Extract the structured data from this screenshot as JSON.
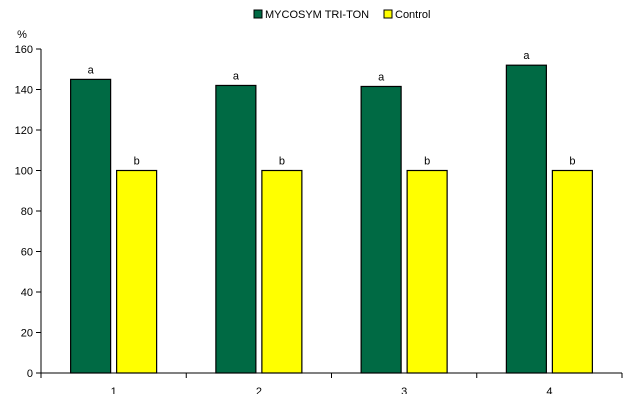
{
  "chart_data": {
    "type": "bar",
    "title": "",
    "ylabel": "%",
    "xlabel": "",
    "categories": [
      "1",
      "2",
      "3",
      "4"
    ],
    "ylim": [
      0,
      160
    ],
    "yticks": [
      0,
      20,
      40,
      60,
      80,
      100,
      120,
      140,
      160
    ],
    "grid": false,
    "legend_position": "top",
    "series": [
      {
        "name": "MYCOSYM TRI-TON",
        "values": [
          145,
          142,
          141.5,
          152
        ],
        "labels": [
          "a",
          "a",
          "a",
          "a"
        ],
        "color": "#006a44"
      },
      {
        "name": "Control",
        "values": [
          100,
          100,
          100,
          100
        ],
        "labels": [
          "b",
          "b",
          "b",
          "b"
        ],
        "color": "#ffff00"
      }
    ]
  }
}
